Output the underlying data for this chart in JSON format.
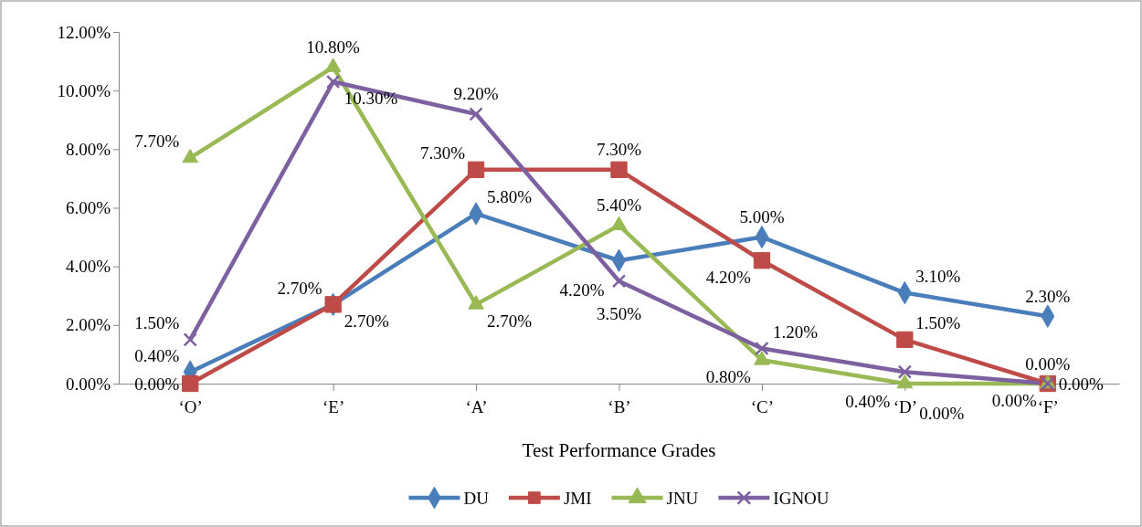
{
  "chart_data": {
    "type": "line",
    "xlabel": "Test Performance Grades",
    "categories": [
      "‘O’",
      "‘E’",
      "‘A’",
      "‘B’",
      "‘C’",
      "‘D’",
      "‘F’"
    ],
    "ylim": [
      0,
      12
    ],
    "yticks": [
      {
        "value": 0,
        "label": "0.00%"
      },
      {
        "value": 2,
        "label": "2.00%"
      },
      {
        "value": 4,
        "label": "4.00%"
      },
      {
        "value": 6,
        "label": "6.00%"
      },
      {
        "value": 8,
        "label": "8.00%"
      },
      {
        "value": 10,
        "label": "10.00%"
      },
      {
        "value": 12,
        "label": "12.00%"
      }
    ],
    "grid": false,
    "legend": "bottom",
    "series": [
      {
        "name": "DU",
        "color": "#4a7ebb",
        "marker": "diamond",
        "values": [
          0.4,
          2.7,
          5.8,
          4.2,
          5.0,
          3.1,
          2.3
        ],
        "value_labels": [
          "0.40%",
          "2.70%",
          "5.80%",
          "4.20%",
          "5.00%",
          "3.10%",
          "2.30%"
        ]
      },
      {
        "name": "JMI",
        "color": "#be4b48",
        "marker": "square",
        "values": [
          0.0,
          2.7,
          7.3,
          7.3,
          4.2,
          1.5,
          0.0
        ],
        "value_labels": [
          "0.00%",
          "2.70%",
          "7.30%",
          "7.30%",
          "4.20%",
          "1.50%",
          "0.00%"
        ]
      },
      {
        "name": "JNU",
        "color": "#98b954",
        "marker": "triangle",
        "values": [
          7.7,
          10.8,
          2.7,
          5.4,
          0.8,
          0.0,
          0.0
        ],
        "value_labels": [
          "7.70%",
          "10.80%",
          "2.70%",
          "5.40%",
          "0.80%",
          "0.00%",
          "0.00%"
        ]
      },
      {
        "name": "IGNOU",
        "color": "#7d60a0",
        "marker": "cross",
        "values": [
          1.5,
          10.3,
          9.2,
          3.5,
          1.2,
          0.4,
          0.0
        ],
        "value_labels": [
          "1.50%",
          "10.30%",
          "9.20%",
          "3.50%",
          "1.20%",
          "0.40%",
          "0.00%"
        ]
      }
    ]
  }
}
